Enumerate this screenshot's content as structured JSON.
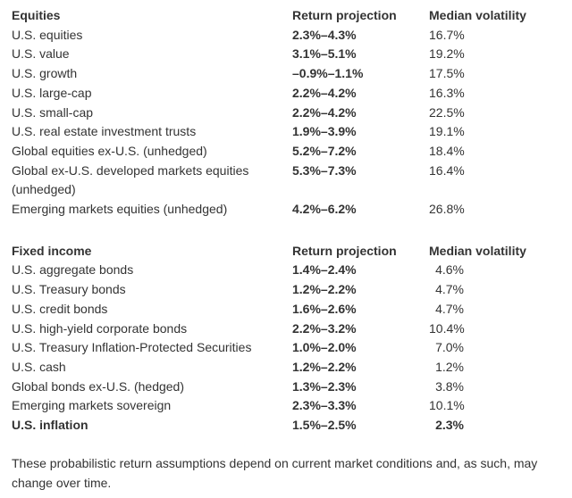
{
  "colors": {
    "background": "#ffffff",
    "text": "#333333"
  },
  "table": {
    "sections": [
      {
        "header": {
          "col1": "Equities",
          "col2": "Return projection",
          "col3": "Median volatility"
        },
        "rows": [
          {
            "label": "U.S. equities",
            "return": "2.3%–4.3%",
            "volatility": "16.7%"
          },
          {
            "label": "U.S. value",
            "return": "3.1%–5.1%",
            "volatility": "19.2%"
          },
          {
            "label": "U.S. growth",
            "return": "–0.9%–1.1%",
            "volatility": "17.5%"
          },
          {
            "label": "U.S. large-cap",
            "return": "2.2%–4.2%",
            "volatility": "16.3%"
          },
          {
            "label": "U.S. small-cap",
            "return": "2.2%–4.2%",
            "volatility": "22.5%"
          },
          {
            "label": "U.S. real estate investment trusts",
            "return": "1.9%–3.9%",
            "volatility": "19.1%"
          },
          {
            "label": "Global equities ex-U.S. (unhedged)",
            "return": "5.2%–7.2%",
            "volatility": "18.4%"
          },
          {
            "label": "Global ex-U.S. developed markets equities (unhedged)",
            "return": "5.3%–7.3%",
            "volatility": "16.4%"
          },
          {
            "label": "Emerging markets equities (unhedged)",
            "return": "4.2%–6.2%",
            "volatility": "26.8%"
          }
        ]
      },
      {
        "header": {
          "col1": "Fixed income",
          "col2": "Return projection",
          "col3": "Median volatility"
        },
        "rows": [
          {
            "label": "U.S. aggregate bonds",
            "return": "1.4%–2.4%",
            "volatility": "4.6%"
          },
          {
            "label": "U.S. Treasury bonds",
            "return": "1.2%–2.2%",
            "volatility": "4.7%"
          },
          {
            "label": "U.S. credit bonds",
            "return": "1.6%–2.6%",
            "volatility": "4.7%"
          },
          {
            "label": "U.S. high-yield corporate bonds",
            "return": "2.2%–3.2%",
            "volatility": "10.4%"
          },
          {
            "label": "U.S. Treasury Inflation-Protected Securities",
            "return": "1.0%–2.0%",
            "volatility": "7.0%"
          },
          {
            "label": "U.S. cash",
            "return": "1.2%–2.2%",
            "volatility": "1.2%"
          },
          {
            "label": "Global bonds ex-U.S. (hedged)",
            "return": "1.3%–2.3%",
            "volatility": "3.8%"
          },
          {
            "label": "Emerging markets sovereign",
            "return": "2.3%–3.3%",
            "volatility": "10.1%"
          },
          {
            "label": "U.S. inflation",
            "return": "1.5%–2.5%",
            "volatility": "2.3%",
            "bold": true
          }
        ]
      }
    ]
  },
  "footnote": "These probabilistic return assumptions depend on current market conditions and, as such, may change over time."
}
